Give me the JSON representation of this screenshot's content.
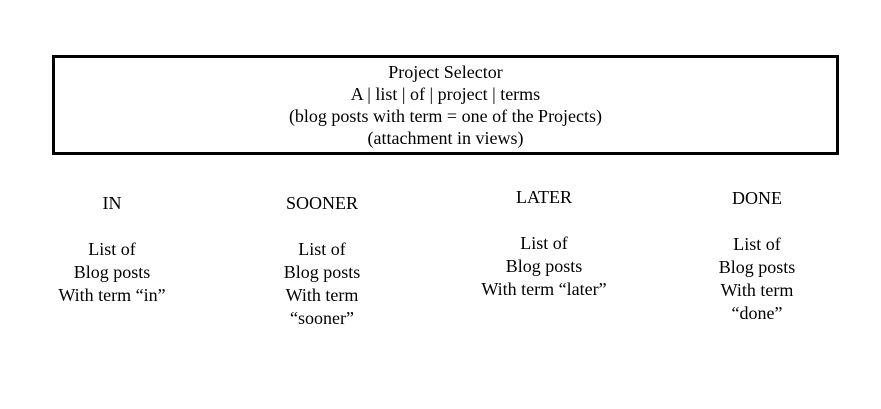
{
  "project_selector": {
    "title": "Project Selector",
    "terms_line": "A | list | of | project | terms",
    "description": "(blog posts with term = one of the Projects)",
    "note": "(attachment in views)"
  },
  "columns": [
    {
      "heading": "IN",
      "lines": [
        "List of",
        "Blog posts",
        "With term “in”"
      ]
    },
    {
      "heading": "SOONER",
      "lines": [
        "List of",
        "Blog posts",
        "With term",
        "“sooner”"
      ]
    },
    {
      "heading": "LATER",
      "lines": [
        "List of",
        "Blog posts",
        "With term “later”"
      ]
    },
    {
      "heading": "DONE",
      "lines": [
        "List of",
        "Blog posts",
        "With term",
        "“done”"
      ]
    }
  ]
}
